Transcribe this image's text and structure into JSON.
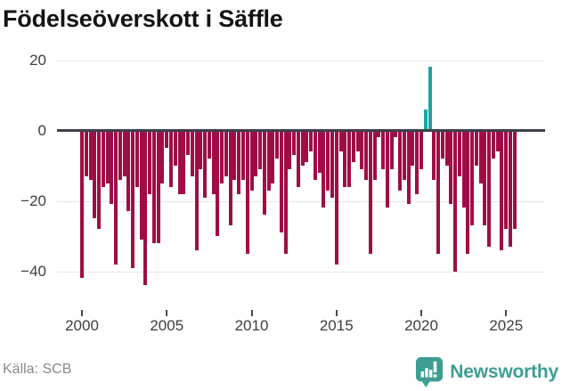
{
  "title": "Födelseöverskott i Säffle",
  "source": "Källa: SCB",
  "logo": {
    "text": "Newsworthy",
    "icon": "newsworthy-badge-icon"
  },
  "chart_data": {
    "type": "bar",
    "title": "Födelseöverskott i Säffle",
    "x_unit": "quarter",
    "start": "2000-Q1",
    "end": "2025-Q3",
    "x_tick_labels": [
      "2000",
      "2005",
      "2010",
      "2015",
      "2020",
      "2025"
    ],
    "y_ticks": [
      20,
      0,
      -20,
      -40
    ],
    "y_tick_labels": [
      "20",
      "0",
      "−20",
      "−40"
    ],
    "ylim": [
      -47,
      22
    ],
    "grid": true,
    "negative_color": "#a00d45",
    "positive_color": "#17a79f",
    "values": [
      -42,
      -13,
      -14,
      -25,
      -28,
      -16,
      -15,
      -21,
      -38,
      -14,
      -13,
      -23,
      -39,
      -16,
      -31,
      -44,
      -18,
      -32,
      -32,
      -15,
      -5,
      -16,
      -10,
      -18,
      -18,
      -7,
      -13,
      -34,
      -11,
      -19,
      -8,
      -18,
      -30,
      -15,
      -13,
      -27,
      -14,
      -18,
      -14,
      -35,
      -17,
      -13,
      -11,
      -24,
      -17,
      -15,
      -8,
      -29,
      -35,
      -11,
      -7,
      -16,
      -10,
      -9,
      -6,
      -14,
      -12,
      -22,
      -17,
      -19,
      -38,
      -6,
      -16,
      -16,
      -9,
      -6,
      -11,
      -14,
      -35,
      -14,
      -2,
      -11,
      -22,
      -11,
      -2,
      -17,
      -14,
      -21,
      -10,
      -18,
      -11,
      6,
      18,
      -14,
      -35,
      -8,
      -10,
      -21,
      -40,
      -13,
      -22,
      -35,
      -27,
      -10,
      -15,
      -27,
      -33,
      -8,
      -6,
      -34,
      -28,
      -33,
      -28
    ]
  }
}
